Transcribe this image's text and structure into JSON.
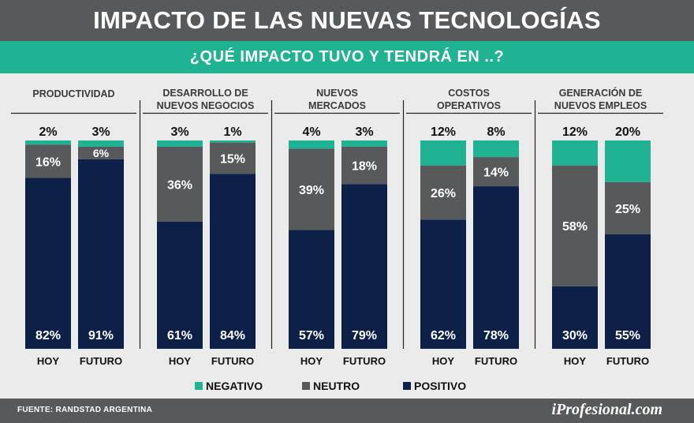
{
  "title": "IMPACTO DE LAS NUEVAS TECNOLOGÍAS",
  "subtitle": "¿QUÉ IMPACTO TUVO Y TENDRÁ EN ..?",
  "source": "FUENTE: RANDSTAD ARGENTINA",
  "brand": "iProfesional.com",
  "colors": {
    "negativo": "#1fb394",
    "neutro": "#58595b",
    "positivo": "#0d2148",
    "background": "#ebebeb",
    "header": "#58595b"
  },
  "chart_data": {
    "type": "bar",
    "stacked": true,
    "orientation": "vertical",
    "ylim": [
      0,
      100
    ],
    "categories": [
      "HOY",
      "FUTURO"
    ],
    "legend": {
      "position": "bottom",
      "entries": [
        {
          "name": "NEGATIVO",
          "color": "#1fb394"
        },
        {
          "name": "NEUTRO",
          "color": "#58595b"
        },
        {
          "name": "POSITIVO",
          "color": "#0d2148"
        }
      ]
    },
    "panels": [
      {
        "title": [
          "PRODUCTIVIDAD"
        ],
        "bars": [
          {
            "category": "HOY",
            "negativo": 2,
            "neutro": 16,
            "positivo": 82
          },
          {
            "category": "FUTURO",
            "negativo": 3,
            "neutro": 6,
            "positivo": 91
          }
        ]
      },
      {
        "title": [
          "DESARROLLO DE",
          "NUEVOS NEGOCIOS"
        ],
        "bars": [
          {
            "category": "HOY",
            "negativo": 3,
            "neutro": 36,
            "positivo": 61
          },
          {
            "category": "FUTURO",
            "negativo": 1,
            "neutro": 15,
            "positivo": 84
          }
        ]
      },
      {
        "title": [
          "NUEVOS",
          "MERCADOS"
        ],
        "bars": [
          {
            "category": "HOY",
            "negativo": 4,
            "neutro": 39,
            "positivo": 57
          },
          {
            "category": "FUTURO",
            "negativo": 3,
            "neutro": 18,
            "positivo": 79
          }
        ]
      },
      {
        "title": [
          "COSTOS",
          "OPERATIVOS"
        ],
        "bars": [
          {
            "category": "HOY",
            "negativo": 12,
            "neutro": 26,
            "positivo": 62
          },
          {
            "category": "FUTURO",
            "negativo": 8,
            "neutro": 14,
            "positivo": 78
          }
        ]
      },
      {
        "title": [
          "GENERACIÓN DE",
          "NUEVOS EMPLEOS"
        ],
        "bars": [
          {
            "category": "HOY",
            "negativo": 12,
            "neutro": 58,
            "positivo": 30
          },
          {
            "category": "FUTURO",
            "negativo": 20,
            "neutro": 25,
            "positivo": 55
          }
        ]
      }
    ]
  }
}
